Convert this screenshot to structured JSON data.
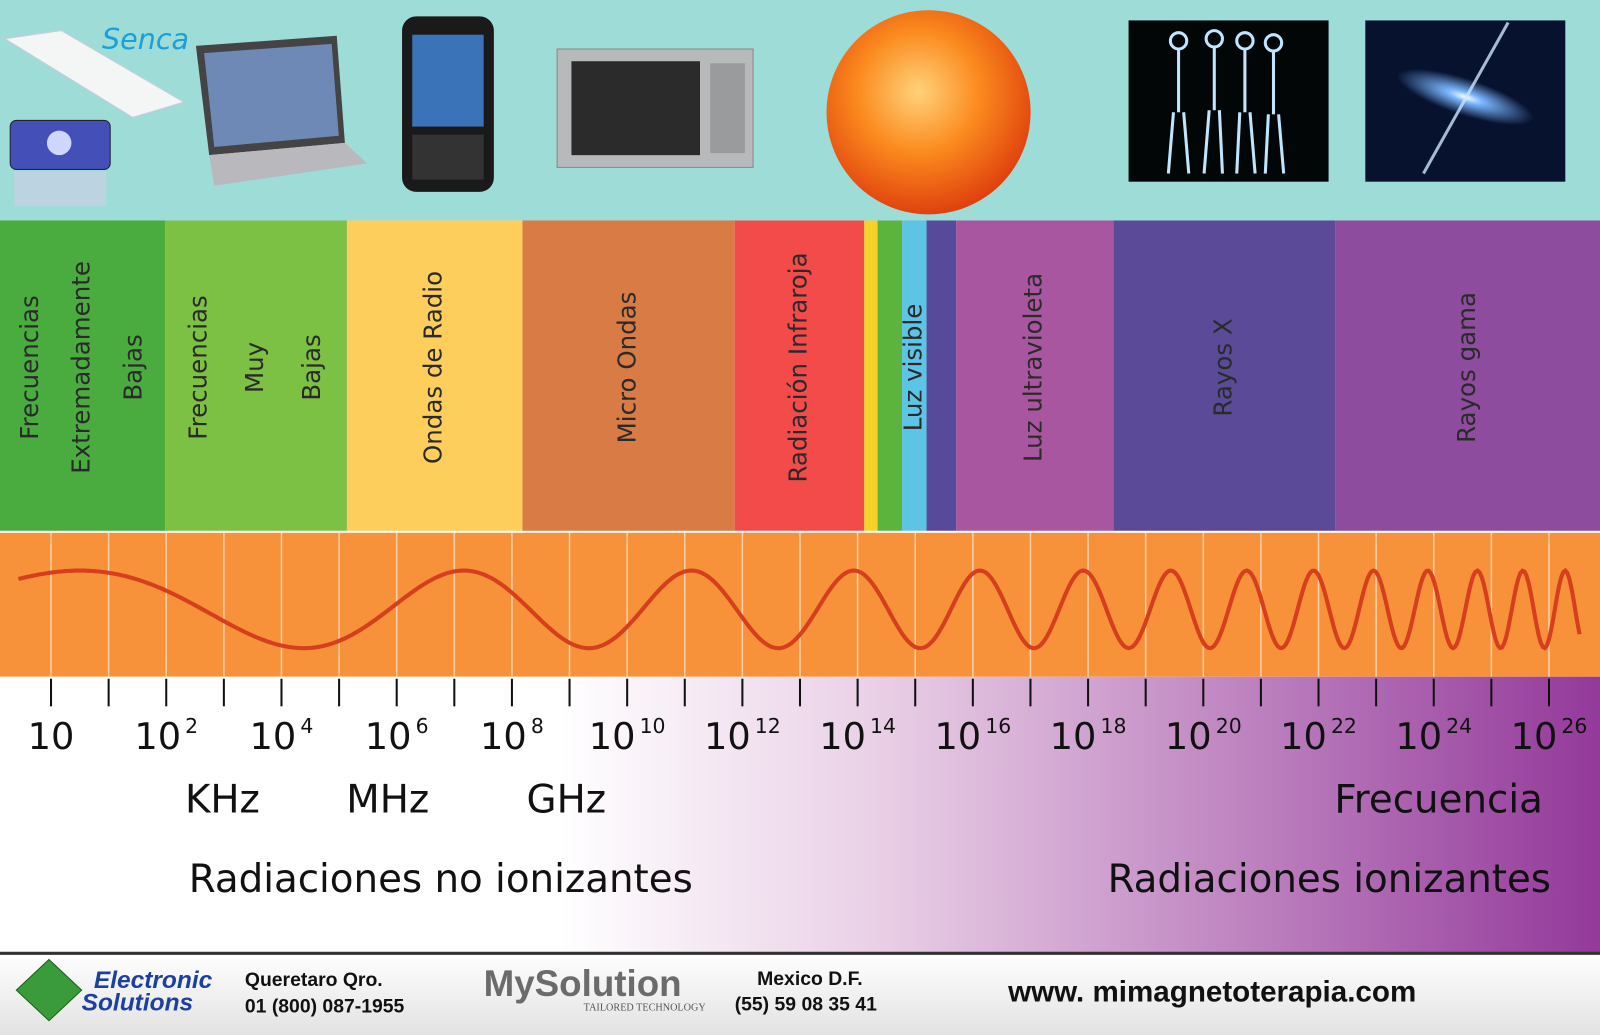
{
  "header": {
    "brand": "Senca"
  },
  "bands": [
    {
      "lines": [
        "Frecuencias",
        "Extremadamente",
        "Bajas"
      ],
      "color": "#4aab3f"
    },
    {
      "lines": [
        "Frecuencias",
        "Muy",
        "Bajas"
      ],
      "color": "#7cc143"
    },
    {
      "lines": [
        "Ondas de Radio"
      ],
      "color": "#fdce5b"
    },
    {
      "lines": [
        "Micro Ondas"
      ],
      "color": "#d97b45"
    },
    {
      "lines": [
        "Radiación Infraroja"
      ],
      "color": "#f34a4a"
    },
    {
      "lines": [
        "Luz visible"
      ],
      "color": "#5ec4e6"
    },
    {
      "lines": [
        "Luz ultravioleta"
      ],
      "color": "#a956a1"
    },
    {
      "lines": [
        "Rayos X"
      ],
      "color": "#5b4a97"
    },
    {
      "lines": [
        "Rayos gama"
      ],
      "color": "#8e4c9e"
    }
  ],
  "scale": {
    "ticks": [
      {
        "base": "10"
      },
      {
        "base": "10",
        "exponent": "2"
      },
      {
        "base": "10",
        "exponent": "4"
      },
      {
        "base": "10",
        "exponent": "6"
      },
      {
        "base": "10",
        "exponent": "8"
      },
      {
        "base": "10",
        "exponent": "10"
      },
      {
        "base": "10",
        "exponent": "12"
      },
      {
        "base": "10",
        "exponent": "14"
      },
      {
        "base": "10",
        "exponent": "16"
      },
      {
        "base": "10",
        "exponent": "18"
      },
      {
        "base": "10",
        "exponent": "20"
      },
      {
        "base": "10",
        "exponent": "22"
      },
      {
        "base": "10",
        "exponent": "24"
      },
      {
        "base": "10",
        "exponent": "26"
      }
    ],
    "units": [
      "KHz",
      "MHz",
      "GHz"
    ],
    "axis_label": "Frecuencia"
  },
  "regions": {
    "non_ionizing": "Radiaciones no ionizantes",
    "ionizing": "Radiaciones ionizantes"
  },
  "footer": {
    "company": [
      "Electronic",
      "Solutions"
    ],
    "office1": {
      "city": "Queretaro Qro.",
      "phone": "01 (800) 087-1955"
    },
    "partner": {
      "name": "MySolution",
      "tagline": "TAILORED TECHNOLOGY"
    },
    "office2": {
      "city": "Mexico D.F.",
      "phone": "(55) 59 08 35 41"
    },
    "website": "www. mimagnetoterapia.com"
  }
}
